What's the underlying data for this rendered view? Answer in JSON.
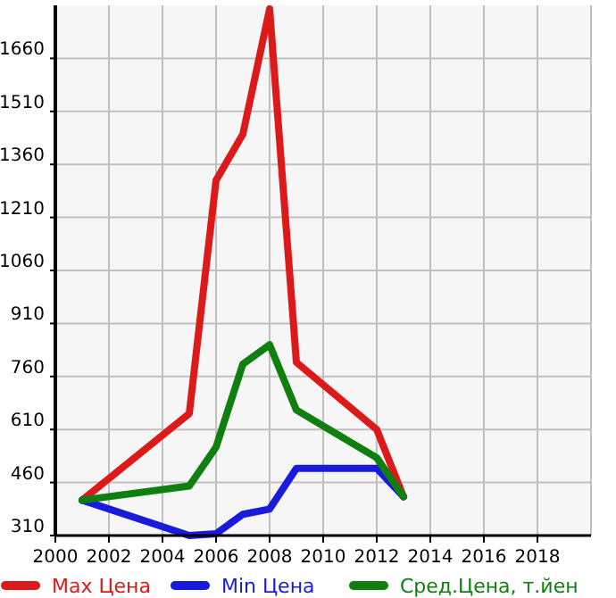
{
  "chart_data": {
    "type": "line",
    "x": [
      2001,
      2005,
      2006,
      2007,
      2008,
      2009,
      2012,
      2013
    ],
    "series": [
      {
        "name": "Max Цена",
        "color": "#dd1a1a",
        "values": [
          410,
          655,
          1315,
          1445,
          1800,
          800,
          610,
          420
        ]
      },
      {
        "name": "Min Цена",
        "color": "#1a1add",
        "values": [
          410,
          310,
          315,
          370,
          385,
          500,
          500,
          420
        ]
      },
      {
        "name": "Сред.Цена, т.йен",
        "color": "#0f7f0f",
        "values": [
          410,
          450,
          560,
          795,
          850,
          665,
          530,
          420
        ]
      }
    ],
    "xlim": [
      2000,
      2020
    ],
    "xticks": [
      2000,
      2002,
      2004,
      2006,
      2008,
      2010,
      2012,
      2014,
      2016,
      2018
    ],
    "ylim": [
      310,
      1810
    ],
    "yticks": [
      310,
      460,
      610,
      760,
      910,
      1060,
      1210,
      1360,
      1510,
      1660
    ],
    "grid": true,
    "legend": "bottom",
    "marker": "none",
    "line_style": "solid"
  }
}
